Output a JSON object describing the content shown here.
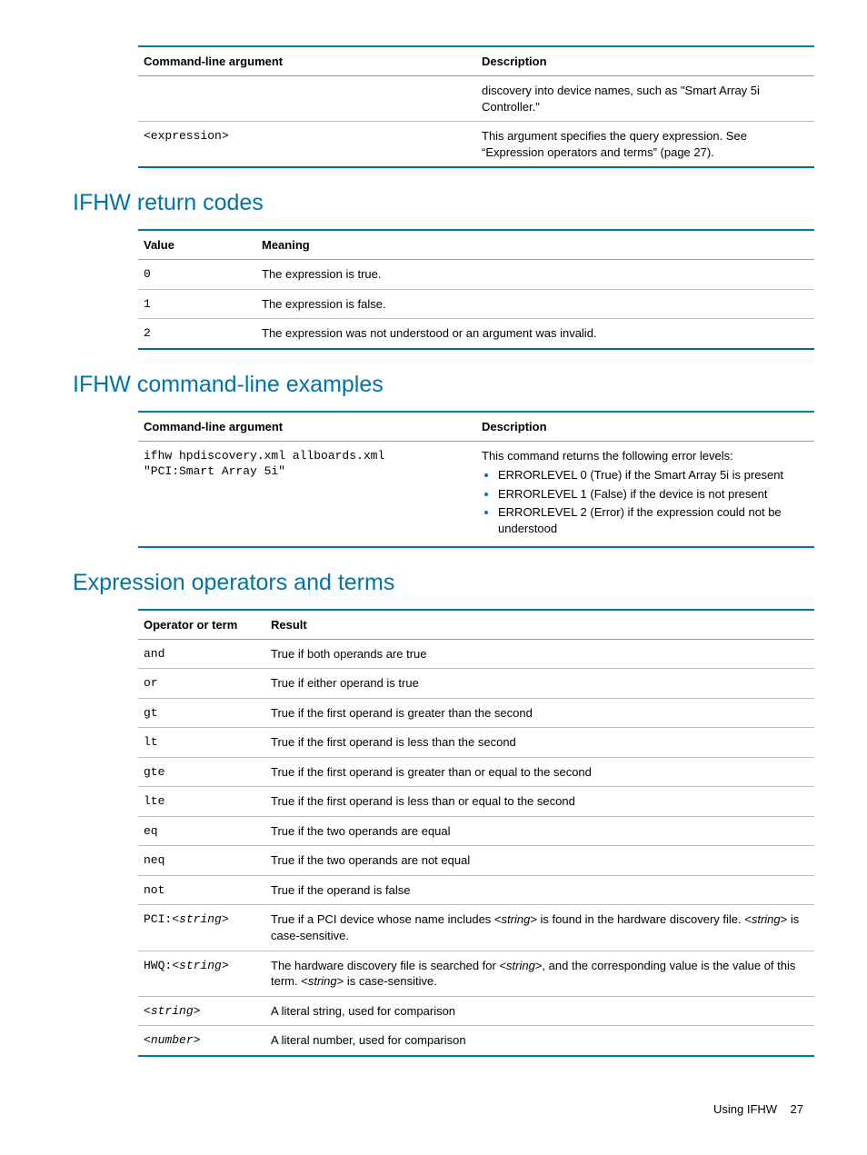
{
  "colors": {
    "accent": "#0073a8",
    "text": "#000000",
    "rule": "#bbbbbb",
    "background": "#ffffff"
  },
  "typography": {
    "body_font": "Arial, Helvetica, sans-serif",
    "mono_font": "Courier New, monospace",
    "heading_size_pt": 19,
    "body_size_pt": 10
  },
  "table1": {
    "headers": [
      "Command-line argument",
      "Description"
    ],
    "rows": [
      {
        "arg": "",
        "desc": "discovery into device names, such as \"Smart Array 5i Controller.\""
      },
      {
        "arg": "<expression>",
        "desc": "This argument specifies the query expression. See “Expression operators and terms” (page 27)."
      }
    ]
  },
  "section2": {
    "title": "IFHW return codes",
    "headers": [
      "Value",
      "Meaning"
    ],
    "rows": [
      {
        "value": "0",
        "meaning": "The expression is true."
      },
      {
        "value": "1",
        "meaning": "The expression is false."
      },
      {
        "value": "2",
        "meaning": "The expression was not understood or an argument was invalid."
      }
    ]
  },
  "section3": {
    "title": "IFHW command-line examples",
    "headers": [
      "Command-line argument",
      "Description"
    ],
    "row": {
      "arg_line1": "ifhw hpdiscovery.xml allboards.xml",
      "arg_line2": "\"PCI:Smart Array 5i\"",
      "desc_intro": "This command returns the following error levels:",
      "bullets": [
        "ERRORLEVEL 0 (True) if the Smart Array 5i is present",
        "ERRORLEVEL 1 (False) if the device is not present",
        "ERRORLEVEL 2 (Error) if the expression could not be understood"
      ]
    }
  },
  "section4": {
    "title": "Expression operators and terms",
    "headers": [
      "Operator or term",
      "Result"
    ],
    "rows": [
      {
        "op": "and",
        "result_html": "True if both operands are true"
      },
      {
        "op": "or",
        "result_html": "True if either operand is true"
      },
      {
        "op": "gt",
        "result_html": "True if the first operand is greater than the second"
      },
      {
        "op": "lt",
        "result_html": "True if the first operand is less than the second"
      },
      {
        "op": "gte",
        "result_html": "True if the first operand is greater than or equal to the second"
      },
      {
        "op": "lte",
        "result_html": "True if the first operand is less than or equal to the second"
      },
      {
        "op": "eq",
        "result_html": "True if the two operands are equal"
      },
      {
        "op": "neq",
        "result_html": "True if the two operands are not equal"
      },
      {
        "op": "not",
        "result_html": "True if the operand is false"
      },
      {
        "op": "PCI:<string>",
        "result_html": "True if a PCI device whose name includes <<i>string</i>> is found in the hardware discovery file. <<i>string</i>> is case-sensitive."
      },
      {
        "op": "HWQ:<string>",
        "result_html": "The hardware discovery file is searched for <<i>string</i>>, and the corresponding value is the value of this term. <<i>string</i>> is case-sensitive."
      },
      {
        "op": "<string>",
        "result_html": "A literal string, used for comparison"
      },
      {
        "op": "<number>",
        "result_html": "A literal number, used for comparison"
      }
    ]
  },
  "footer": {
    "text": "Using IFHW",
    "page": "27"
  }
}
